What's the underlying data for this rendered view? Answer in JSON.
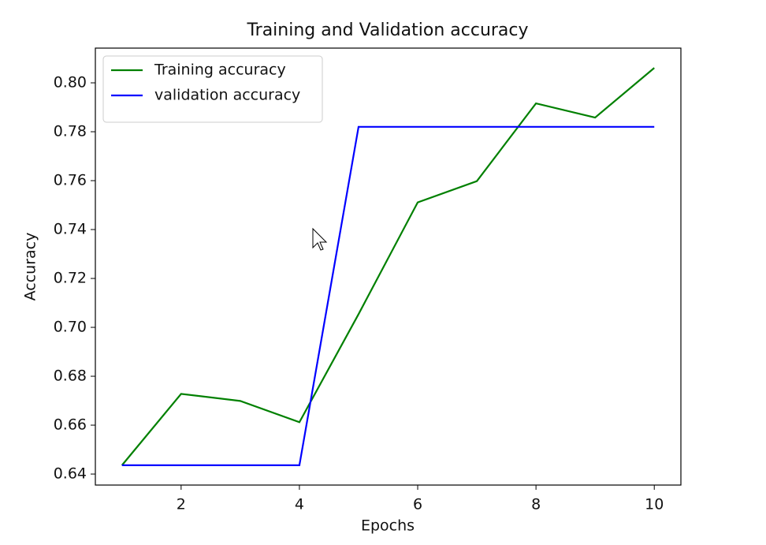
{
  "chart_data": {
    "type": "line",
    "title": "Training and Validation accuracy",
    "x_label": "Epochs",
    "y_label": "Accuracy",
    "x": [
      1,
      2,
      3,
      4,
      5,
      6,
      7,
      8,
      9,
      10
    ],
    "series": [
      {
        "name": "Training accuracy",
        "color": "#008000",
        "values": [
          0.6436,
          0.6728,
          0.6699,
          0.6612,
          0.7054,
          0.7511,
          0.7598,
          0.7916,
          0.7858,
          0.8061
        ]
      },
      {
        "name": "validation accuracy",
        "color": "#0000ff",
        "values": [
          0.6436,
          0.6436,
          0.6436,
          0.6436,
          0.782,
          0.782,
          0.782,
          0.782,
          0.782,
          0.782
        ]
      }
    ],
    "xlim": [
      0.55,
      10.45
    ],
    "xticks": [
      2,
      4,
      6,
      8,
      10
    ],
    "ylim": [
      0.6355,
      0.8142
    ],
    "yticks": [
      0.64,
      0.66,
      0.68,
      {
        "value": 0.7,
        "label": "0.70"
      },
      0.72,
      0.74,
      0.76,
      0.78,
      {
        "value": 0.8,
        "label": "0.80"
      }
    ],
    "legend": "upper left",
    "grid": false
  }
}
